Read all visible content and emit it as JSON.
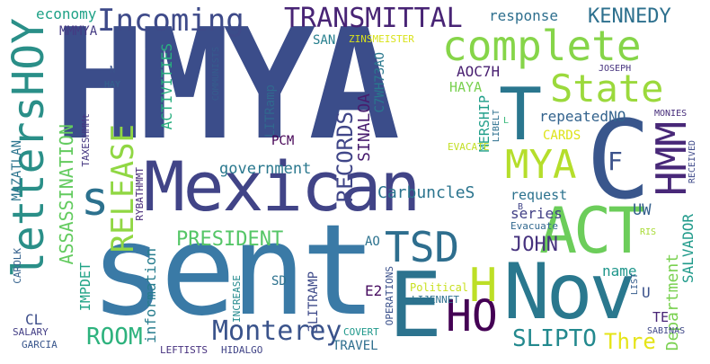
{
  "words": [
    {
      "text": "HMYA",
      "color": "#3b4d8a"
    },
    {
      "text": "sent",
      "color": "#3a7aa6"
    },
    {
      "text": "Mexican",
      "color": "#414487"
    },
    {
      "text": "Nov",
      "color": "#2a788e"
    },
    {
      "text": "ACT",
      "color": "#6ccd5a"
    },
    {
      "text": "E",
      "color": "#2c738e"
    },
    {
      "text": "C",
      "color": "#39568c"
    },
    {
      "text": "T",
      "color": "#2a768e"
    },
    {
      "text": "lettersHOY",
      "color": "#2a8f88"
    },
    {
      "text": "complete",
      "color": "#86d549"
    },
    {
      "text": "State",
      "color": "#9bd93c"
    },
    {
      "text": "Incoming",
      "color": "#3e4a89"
    },
    {
      "text": "TRANSMITTAL",
      "color": "#482475"
    },
    {
      "text": "MYA",
      "color": "#b5de2b"
    },
    {
      "text": "HMM",
      "color": "#482878"
    },
    {
      "text": "TSD",
      "color": "#2e6e8e"
    },
    {
      "text": "HO",
      "color": "#440154"
    },
    {
      "text": "H",
      "color": "#bddf26"
    },
    {
      "text": "s",
      "color": "#2c718e"
    },
    {
      "text": "RELEASE",
      "color": "#90d743"
    },
    {
      "text": "Monterey",
      "color": "#3a538b"
    },
    {
      "text": "SLIPTO",
      "color": "#23898e"
    },
    {
      "text": "ROOM",
      "color": "#2db27d"
    },
    {
      "text": "KENNEDY",
      "color": "#2d708e"
    },
    {
      "text": "PRESIDENT",
      "color": "#55c667"
    },
    {
      "text": "ASSASSINATION",
      "color": "#63cb5f"
    },
    {
      "text": "RECORDS",
      "color": "#404688"
    },
    {
      "text": "JOHN",
      "color": "#46327e"
    },
    {
      "text": "Thre",
      "color": "#e5e419"
    },
    {
      "text": "F",
      "color": "#3b528b"
    },
    {
      "text": "UW",
      "color": "#34608d"
    },
    {
      "text": "government",
      "color": "#2a788e"
    },
    {
      "text": "CarbuncleS",
      "color": "#2b748e"
    },
    {
      "text": "SINALOA",
      "color": "#481c6e"
    },
    {
      "text": "Department",
      "color": "#7ad151"
    },
    {
      "text": "SALVADOR",
      "color": "#1f9a8a"
    },
    {
      "text": "response",
      "color": "#2e6f8e"
    },
    {
      "text": "economy",
      "color": "#1fa287"
    },
    {
      "text": "MMMYA",
      "color": "#443a83"
    },
    {
      "text": "SAN",
      "color": "#277f8e"
    },
    {
      "text": "ZINSMEISTER",
      "color": "#d8e219"
    },
    {
      "text": "AOC7H",
      "color": "#481f70"
    },
    {
      "text": "C7WH73AO",
      "color": "#2a788e"
    },
    {
      "text": "HAYA",
      "color": "#7ad151"
    },
    {
      "text": "MERSHIP",
      "color": "#1f9e89"
    },
    {
      "text": "repeatedNO",
      "color": "#33638d"
    },
    {
      "text": "CARDS",
      "color": "#dde318"
    },
    {
      "text": "series",
      "color": "#424086"
    },
    {
      "text": "request",
      "color": "#2c728e"
    },
    {
      "text": "ACTIVITIES",
      "color": "#29af7f"
    },
    {
      "text": "LITRamp",
      "color": "#31688e"
    },
    {
      "text": "PCM",
      "color": "#440154"
    },
    {
      "text": "COMMUNISTS",
      "color": "#365c8d"
    },
    {
      "text": "JOSEPH",
      "color": "#46337e"
    },
    {
      "text": "MONIES",
      "color": "#472d7b"
    },
    {
      "text": "RECEIVED",
      "color": "#3e4989"
    },
    {
      "text": "LIBELT",
      "color": "#2d708e"
    },
    {
      "text": "EVACATE",
      "color": "#c2df23"
    },
    {
      "text": "AO",
      "color": "#2c728e"
    },
    {
      "text": "U",
      "color": "#3b528b"
    },
    {
      "text": "name",
      "color": "#1f968b"
    },
    {
      "text": "TE",
      "color": "#482475"
    },
    {
      "text": "E2",
      "color": "#470d60"
    },
    {
      "text": "3LITRAMP",
      "color": "#3e4a89"
    },
    {
      "text": "information",
      "color": "#287d8e"
    },
    {
      "text": "IMPDET",
      "color": "#20a386"
    },
    {
      "text": "INCREASE",
      "color": "#238a8d"
    },
    {
      "text": "TAXESHMMt",
      "color": "#453781"
    },
    {
      "text": "RYBATHMMT",
      "color": "#472a7a"
    },
    {
      "text": "MAZATLAN",
      "color": "#2b748e"
    },
    {
      "text": "CAROLK",
      "color": "#34618d"
    },
    {
      "text": "CL",
      "color": "#3d4e8a"
    },
    {
      "text": "SALARY",
      "color": "#433e85"
    },
    {
      "text": "GARCIA",
      "color": "#39568c"
    },
    {
      "text": "LEFTISTS",
      "color": "#46307e"
    },
    {
      "text": "HIDALGO",
      "color": "#414487"
    },
    {
      "text": "TRAVEL",
      "color": "#2e6e8e"
    },
    {
      "text": "COVERT",
      "color": "#1f988b"
    },
    {
      "text": "OPERATIONS",
      "color": "#3b518b"
    },
    {
      "text": "Political",
      "color": "#c8e020"
    },
    {
      "text": "LIJENNET",
      "color": "#2d718e"
    },
    {
      "text": "Evacuate",
      "color": "#31688e"
    },
    {
      "text": "SD",
      "color": "#2c718e"
    },
    {
      "text": "LIST",
      "color": "#365d8d"
    },
    {
      "text": "RIS",
      "color": "#a8db34"
    },
    {
      "text": "SABINAS",
      "color": "#3f4788"
    },
    {
      "text": "N",
      "color": "#3b528b"
    },
    {
      "text": "HAY",
      "color": "#33638d"
    },
    {
      "text": "L",
      "color": "#35b779"
    },
    {
      "text": "B",
      "color": "#414487"
    }
  ]
}
